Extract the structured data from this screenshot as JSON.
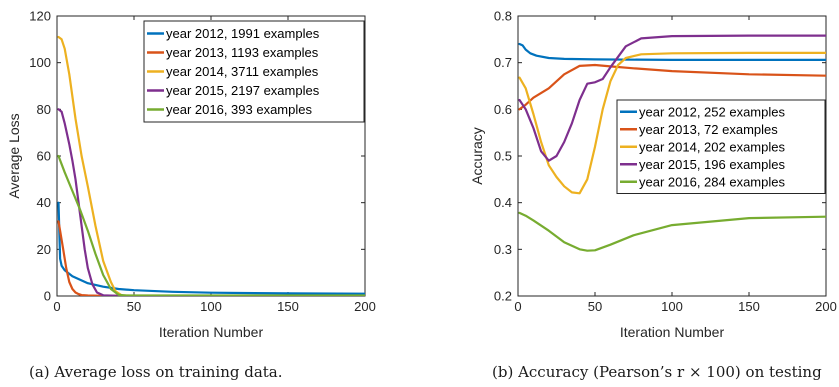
{
  "colors": [
    "#0072BD",
    "#D95319",
    "#EDB120",
    "#7E2F8E",
    "#77AC30"
  ],
  "captions": {
    "a": "(a) Average loss on training data.",
    "b": "(b) Accuracy (Pearson’s r × 100) on testing"
  },
  "chart_data": [
    {
      "type": "line",
      "xlabel": "Iteration Number",
      "ylabel": "Average Loss",
      "xlim": [
        0,
        200
      ],
      "ylim": [
        0,
        120
      ],
      "xticks": [
        0,
        50,
        100,
        150,
        200
      ],
      "yticks": [
        0,
        20,
        40,
        60,
        80,
        100,
        120
      ],
      "grid": false,
      "legend_position": "top-right",
      "series": [
        {
          "name": "year 2012, 1991 examples",
          "x": [
            1,
            2,
            3,
            5,
            10,
            20,
            30,
            40,
            50,
            75,
            100,
            150,
            200
          ],
          "y": [
            40,
            16,
            13,
            11,
            8.5,
            5.5,
            4,
            3,
            2.5,
            1.8,
            1.4,
            1.1,
            1
          ]
        },
        {
          "name": "year 2013, 1193 examples",
          "x": [
            1,
            2,
            4,
            6,
            8,
            10,
            12,
            14,
            16,
            20,
            30,
            50,
            100,
            200
          ],
          "y": [
            32,
            28,
            20,
            12,
            6,
            3,
            1.5,
            0.8,
            0.4,
            0.2,
            0.1,
            0.1,
            0.1,
            0.1
          ]
        },
        {
          "name": "year 2014, 3711 examples",
          "x": [
            1,
            3,
            5,
            8,
            12,
            16,
            20,
            25,
            30,
            35,
            38,
            42,
            50,
            100,
            200
          ],
          "y": [
            111,
            110,
            106,
            95,
            76,
            60,
            47,
            30,
            15,
            6,
            2,
            0.3,
            0.1,
            0.1,
            0.1
          ]
        },
        {
          "name": "year 2015, 2197 examples",
          "x": [
            1,
            3,
            5,
            8,
            10,
            12,
            15,
            18,
            20,
            23,
            26,
            30,
            40,
            100,
            200
          ],
          "y": [
            80,
            79,
            74,
            65,
            58,
            50,
            35,
            20,
            12,
            5,
            1.5,
            0.3,
            0.1,
            0.1,
            0.1
          ]
        },
        {
          "name": "year 2016, 393 examples",
          "x": [
            1,
            5,
            10,
            15,
            20,
            25,
            30,
            35,
            40,
            45,
            50,
            100,
            200
          ],
          "y": [
            60,
            53,
            45,
            37,
            28,
            18,
            9,
            3,
            0.5,
            0.2,
            0.2,
            0.2,
            0.2
          ]
        }
      ]
    },
    {
      "type": "line",
      "xlabel": "Iteration Number",
      "ylabel": "Accuracy",
      "xlim": [
        0,
        200
      ],
      "ylim": [
        0.2,
        0.8
      ],
      "xticks": [
        0,
        50,
        100,
        150,
        200
      ],
      "yticks": [
        0.2,
        0.3,
        0.4,
        0.5,
        0.6,
        0.7,
        0.8
      ],
      "grid": false,
      "legend_position": "center-right",
      "series": [
        {
          "name": "year 2012, 252 examples",
          "x": [
            1,
            3,
            5,
            8,
            12,
            20,
            30,
            50,
            100,
            200
          ],
          "y": [
            0.74,
            0.737,
            0.728,
            0.72,
            0.715,
            0.71,
            0.708,
            0.707,
            0.706,
            0.706
          ]
        },
        {
          "name": "year 2013, 72 examples",
          "x": [
            1,
            5,
            10,
            20,
            30,
            40,
            50,
            60,
            75,
            100,
            150,
            200
          ],
          "y": [
            0.6,
            0.61,
            0.625,
            0.645,
            0.675,
            0.693,
            0.695,
            0.692,
            0.688,
            0.682,
            0.675,
            0.672
          ]
        },
        {
          "name": "year 2014, 202 examples",
          "x": [
            1,
            5,
            10,
            15,
            20,
            25,
            30,
            35,
            40,
            45,
            50,
            55,
            60,
            65,
            70,
            80,
            100,
            150,
            200
          ],
          "y": [
            0.668,
            0.645,
            0.59,
            0.53,
            0.48,
            0.455,
            0.435,
            0.422,
            0.42,
            0.45,
            0.52,
            0.6,
            0.66,
            0.695,
            0.71,
            0.718,
            0.72,
            0.721,
            0.721
          ]
        },
        {
          "name": "year 2015, 196 examples",
          "x": [
            1,
            5,
            10,
            15,
            20,
            25,
            30,
            35,
            40,
            45,
            50,
            55,
            60,
            70,
            80,
            100,
            150,
            200
          ],
          "y": [
            0.62,
            0.6,
            0.56,
            0.51,
            0.49,
            0.5,
            0.53,
            0.57,
            0.62,
            0.655,
            0.658,
            0.665,
            0.69,
            0.735,
            0.752,
            0.757,
            0.758,
            0.758
          ]
        },
        {
          "name": "year 2016, 284 examples",
          "x": [
            1,
            5,
            10,
            20,
            30,
            40,
            45,
            50,
            60,
            75,
            100,
            150,
            200
          ],
          "y": [
            0.378,
            0.372,
            0.362,
            0.34,
            0.315,
            0.3,
            0.297,
            0.298,
            0.31,
            0.33,
            0.352,
            0.367,
            0.37
          ]
        }
      ]
    }
  ]
}
